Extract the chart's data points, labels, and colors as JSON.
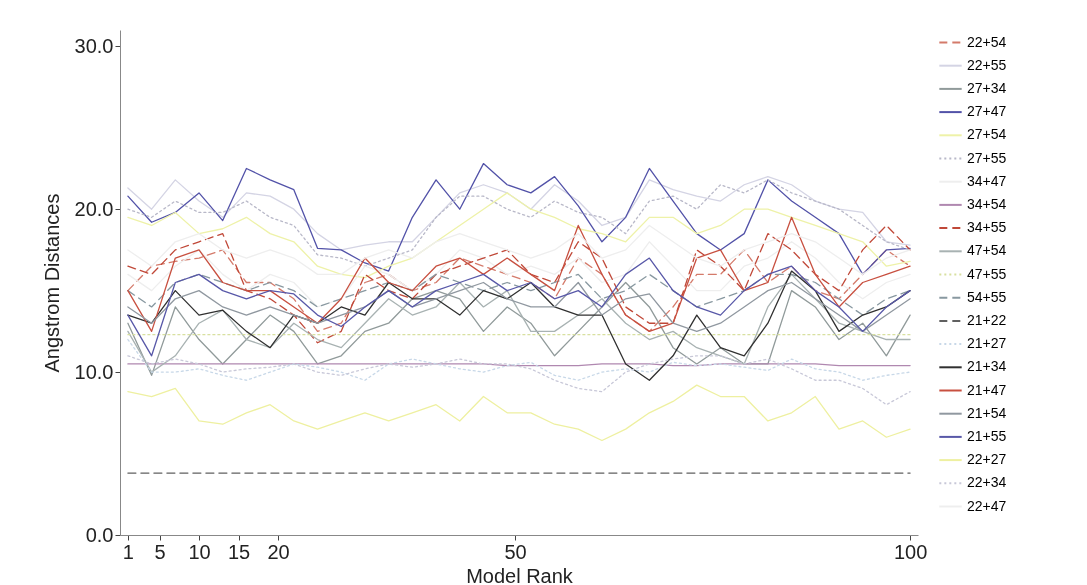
{
  "chart_data": {
    "type": "line",
    "xlabel": "Model Rank",
    "ylabel": "Angstrom Distances",
    "x": [
      1,
      4,
      7,
      10,
      13,
      16,
      19,
      22,
      25,
      28,
      31,
      34,
      37,
      40,
      43,
      46,
      49,
      52,
      55,
      58,
      61,
      64,
      67,
      70,
      73,
      76,
      79,
      82,
      85,
      88,
      91,
      94,
      97,
      100
    ],
    "xlim": [
      0,
      101
    ],
    "xticks": [
      1,
      5,
      10,
      15,
      20,
      50,
      100
    ],
    "ylim": [
      0,
      31
    ],
    "yticks": [
      {
        "value": 0,
        "label": "0.0"
      },
      {
        "value": 10,
        "label": "10.0"
      },
      {
        "value": 20,
        "label": "20.0"
      },
      {
        "value": 30,
        "label": "30.0"
      }
    ],
    "grid": false,
    "legend": "right",
    "series": [
      {
        "name": "22+54",
        "color": "#d47a6a",
        "line_style": "dashed",
        "values": [
          15,
          16.5,
          16.8,
          17,
          17.5,
          15.5,
          15.5,
          14.5,
          12.5,
          13,
          15.5,
          16,
          15,
          15.5,
          17,
          16.5,
          16,
          15.5,
          14.5,
          17,
          16,
          13.5,
          12.5,
          14,
          16,
          16,
          17.5,
          15.5,
          16.5,
          15,
          14.5,
          16,
          17.5,
          16.5
        ]
      },
      {
        "name": "22+55",
        "color": "#d4d4e4",
        "line_style": "solid",
        "values": [
          21.3,
          20,
          21.8,
          20.5,
          19.5,
          21,
          20.8,
          20,
          18.5,
          17.5,
          17.8,
          18,
          18,
          19.5,
          21,
          21.5,
          21,
          20,
          21.5,
          20.5,
          19,
          19.5,
          21.8,
          21.2,
          20.8,
          20.5,
          21.5,
          22,
          21.5,
          20.5,
          20,
          19.8,
          18,
          17.8
        ]
      },
      {
        "name": "27+34",
        "color": "#909a9a",
        "line_style": "solid",
        "values": [
          13,
          9.8,
          14,
          12,
          10.5,
          12,
          13.5,
          12.5,
          10.5,
          11,
          12.5,
          13,
          14.5,
          15,
          14.5,
          12.5,
          14,
          13,
          11,
          12.5,
          14,
          15.5,
          14,
          11.5,
          10.5,
          11.5,
          10.5,
          10.5,
          15,
          14,
          12,
          13,
          11,
          13.5
        ]
      },
      {
        "name": "27+47",
        "color": "#5252a8",
        "line_style": "solid",
        "values": [
          20.8,
          19.2,
          19.8,
          21,
          19.3,
          22.5,
          21.8,
          21.2,
          17.6,
          17.5,
          16.7,
          16.2,
          19.5,
          21.8,
          20,
          22.8,
          21.5,
          21,
          22,
          20.2,
          18,
          19.5,
          22.5,
          20.5,
          18.5,
          17.5,
          18.5,
          21.8,
          20.5,
          19.5,
          18.5,
          16,
          17.5,
          17.6
        ]
      },
      {
        "name": "27+54",
        "color": "#eef2a8",
        "line_style": "solid",
        "values": [
          19.5,
          19,
          19.8,
          18.5,
          18.8,
          19.5,
          18.5,
          18,
          16.5,
          16,
          15.8,
          16.5,
          17,
          18,
          19,
          20,
          21,
          20,
          19.5,
          18.8,
          18.5,
          18,
          19.5,
          19.5,
          18.5,
          19,
          20,
          20,
          19.5,
          19,
          18.5,
          18,
          16.5,
          16.8
        ]
      },
      {
        "name": "27+55",
        "color": "#b8b8c8",
        "line_style": "dotted",
        "values": [
          20,
          19.5,
          20.5,
          19.8,
          19.8,
          20.5,
          19.5,
          19,
          17.2,
          17,
          16.5,
          17,
          17.5,
          19.5,
          20.8,
          20.8,
          20,
          19.5,
          20.5,
          19.8,
          19.5,
          18.5,
          20.5,
          20.8,
          20,
          21.5,
          21,
          21.8,
          21,
          20.5,
          20,
          19,
          18,
          17.5
        ]
      },
      {
        "name": "34+47",
        "color": "#eeeeee",
        "line_style": "solid",
        "values": [
          16,
          15,
          16.5,
          17.5,
          16,
          15,
          16,
          15.5,
          14,
          14.5,
          16.5,
          16,
          15,
          16,
          17.5,
          17,
          16,
          16.5,
          16,
          17,
          15.5,
          16,
          18,
          16.5,
          15,
          15,
          16.5,
          17,
          18,
          17,
          15.5,
          14.5,
          15.5,
          16
        ]
      },
      {
        "name": "34+54",
        "color": "#b088b0",
        "line_style": "solid",
        "values": [
          10.5,
          10.5,
          10.5,
          10.5,
          10.5,
          10.5,
          10.5,
          10.5,
          10.5,
          10.5,
          10.5,
          10.5,
          10.5,
          10.5,
          10.5,
          10.5,
          10.4,
          10.4,
          10.4,
          10.4,
          10.5,
          10.5,
          10.5,
          10.4,
          10.4,
          10.5,
          10.5,
          10.5,
          10.5,
          10.5,
          10.4,
          10.4,
          10.4,
          10.4
        ]
      },
      {
        "name": "34+55",
        "color": "#c04838",
        "line_style": "dashed",
        "values": [
          16.5,
          16,
          17.5,
          18,
          18.5,
          15,
          14.5,
          13.5,
          11.8,
          12.5,
          16,
          15,
          14.5,
          16,
          16.5,
          17,
          17.5,
          16,
          15.5,
          18,
          17,
          14,
          13,
          13,
          17.5,
          16.5,
          15,
          18.5,
          17.5,
          16,
          15,
          17.5,
          19,
          17.5
        ]
      },
      {
        "name": "47+54",
        "color": "#a8b2b2",
        "line_style": "solid",
        "values": [
          12.5,
          10,
          11,
          13,
          13.8,
          12,
          11.5,
          13,
          12,
          11.5,
          13,
          14.5,
          13.5,
          14,
          15.5,
          14,
          15,
          12.5,
          12.5,
          13.5,
          14.5,
          13,
          12,
          12.5,
          11.5,
          11,
          10.5,
          14,
          16,
          14.5,
          13,
          12.5,
          12,
          12
        ]
      },
      {
        "name": "47+55",
        "color": "#d8e0a0",
        "line_style": "dotted",
        "values": [
          12.3,
          12.3,
          12.3,
          12.3,
          12.3,
          12.3,
          12.3,
          12.3,
          12.3,
          12.3,
          12.3,
          12.3,
          12.3,
          12.3,
          12.3,
          12.3,
          12.3,
          12.3,
          12.3,
          12.3,
          12.3,
          12.3,
          12.3,
          12.3,
          12.3,
          12.3,
          12.3,
          12.3,
          12.3,
          12.3,
          12.3,
          12.3,
          12.3,
          12.3
        ]
      },
      {
        "name": "54+55",
        "color": "#8898a0",
        "line_style": "dashed",
        "values": [
          15,
          14,
          15.5,
          16,
          15.5,
          15,
          15.5,
          15,
          14,
          14.5,
          15,
          15.5,
          15,
          16,
          15.5,
          15,
          15.5,
          15,
          15.5,
          16,
          14.5,
          15,
          16,
          15,
          14,
          14.5,
          15,
          16,
          16,
          15.5,
          14.5,
          13.5,
          14.5,
          15
        ]
      },
      {
        "name": "21+22",
        "color": "#606060",
        "line_style": "dashed",
        "values": [
          3.8,
          3.8,
          3.8,
          3.8,
          3.8,
          3.8,
          3.8,
          3.8,
          3.8,
          3.8,
          3.8,
          3.8,
          3.8,
          3.8,
          3.8,
          3.8,
          3.8,
          3.8,
          3.8,
          3.8,
          3.8,
          3.8,
          3.8,
          3.8,
          3.8,
          3.8,
          3.8,
          3.8,
          3.8,
          3.8,
          3.8,
          3.8,
          3.8,
          3.8
        ]
      },
      {
        "name": "21+27",
        "color": "#c8d8e8",
        "line_style": "dotted",
        "values": [
          12,
          10,
          10,
          10.2,
          9.8,
          9.5,
          10,
          10.5,
          10.3,
          10,
          9.5,
          10.5,
          10.8,
          10.5,
          10.2,
          10,
          10.4,
          10.6,
          9.8,
          9.5,
          10,
          10.2,
          10,
          10.6,
          10.4,
          10.5,
          10.3,
          10.1,
          10.8,
          10.2,
          10,
          9.5,
          9.8,
          10
        ]
      },
      {
        "name": "21+34",
        "color": "#303030",
        "line_style": "solid",
        "values": [
          13.5,
          13,
          15,
          13.5,
          13.8,
          12.5,
          11.5,
          13.5,
          13,
          14,
          13.5,
          15.5,
          14.5,
          14.5,
          13.5,
          15,
          14.5,
          15.5,
          14,
          13.5,
          13.5,
          10.5,
          9.5,
          11,
          13.5,
          11.5,
          11,
          13,
          16.2,
          15,
          12.5,
          13.5,
          14,
          15
        ]
      },
      {
        "name": "21+47",
        "color": "#c85040",
        "line_style": "solid",
        "values": [
          15,
          12.5,
          17,
          17.5,
          15.5,
          15,
          15,
          14,
          13,
          14.5,
          17,
          15.5,
          15,
          16.5,
          17,
          16,
          17,
          16,
          15,
          19,
          16,
          13.5,
          12.5,
          13,
          17,
          17.5,
          15,
          15.5,
          19.5,
          16,
          14,
          15.5,
          16,
          16.5
        ]
      },
      {
        "name": "21+54",
        "color": "#9098a0",
        "line_style": "solid",
        "values": [
          14,
          13,
          14.5,
          15,
          14,
          13.5,
          14,
          13.5,
          13,
          13.5,
          14,
          15,
          14,
          14.5,
          15,
          15.5,
          14.5,
          14,
          14,
          15.5,
          13.5,
          14.5,
          14.8,
          13,
          12.5,
          13,
          14,
          15,
          15.5,
          14.5,
          13.5,
          12.5,
          13.5,
          14.5
        ]
      },
      {
        "name": "21+55",
        "color": "#5858a8",
        "line_style": "solid",
        "values": [
          13.5,
          11,
          15.5,
          16,
          15,
          14.5,
          15,
          14.8,
          13.5,
          12.8,
          14,
          15,
          14,
          15,
          15.5,
          16,
          15,
          15.5,
          14.5,
          15,
          14,
          16,
          17,
          15,
          14,
          13.5,
          15,
          16,
          16.5,
          15,
          14,
          12.5,
          14,
          15
        ]
      },
      {
        "name": "22+27",
        "color": "#eef0a0",
        "line_style": "solid",
        "values": [
          8.8,
          8.5,
          9,
          7,
          6.8,
          7.5,
          8,
          7,
          6.5,
          7,
          7.5,
          7,
          7.5,
          8,
          7,
          8.5,
          7.5,
          7.5,
          6.8,
          6.5,
          5.8,
          6.5,
          7.5,
          8.2,
          9.2,
          8.5,
          8.5,
          7,
          7.5,
          8.5,
          6.5,
          7,
          6,
          6.5
        ]
      },
      {
        "name": "22+34",
        "color": "#c8c8d8",
        "line_style": "dotted",
        "values": [
          11,
          10.5,
          10.8,
          10.5,
          10,
          10.2,
          10.3,
          10.5,
          10,
          9.8,
          10.2,
          10.5,
          10.3,
          10.5,
          10.8,
          10.5,
          10.5,
          10.2,
          9.5,
          9,
          8.8,
          10,
          10.5,
          10.8,
          11,
          11,
          10.5,
          10.8,
          10.2,
          9.5,
          9.5,
          9,
          8,
          8.8
        ]
      },
      {
        "name": "22+47",
        "color": "#eeeeee",
        "line_style": "solid",
        "values": [
          17.5,
          16.5,
          18,
          18.5,
          17.5,
          17,
          17.5,
          17,
          16,
          16,
          17,
          17.5,
          17,
          18,
          18.5,
          18,
          17.5,
          17,
          17.5,
          18.5,
          17,
          17.5,
          19,
          18,
          17,
          16.5,
          17.5,
          18,
          18.5,
          18,
          17,
          16,
          17,
          17.5
        ]
      }
    ]
  }
}
